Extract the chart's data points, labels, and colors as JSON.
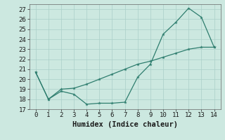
{
  "xlabel": "Humidex (Indice chaleur)",
  "x": [
    0,
    1,
    2,
    3,
    4,
    5,
    6,
    7,
    8,
    9,
    10,
    11,
    12,
    13,
    14
  ],
  "line1": [
    20.7,
    18.0,
    18.8,
    18.5,
    17.5,
    17.6,
    17.6,
    17.7,
    20.2,
    21.5,
    24.5,
    25.7,
    27.1,
    26.2,
    23.2
  ],
  "line2": [
    20.7,
    18.0,
    19.0,
    19.1,
    19.5,
    20.0,
    20.5,
    21.0,
    21.5,
    21.8,
    22.2,
    22.6,
    23.0,
    23.2,
    23.2
  ],
  "ylim": [
    17,
    27.5
  ],
  "xlim": [
    -0.5,
    14.5
  ],
  "yticks": [
    17,
    18,
    19,
    20,
    21,
    22,
    23,
    24,
    25,
    26,
    27
  ],
  "xticks": [
    0,
    1,
    2,
    3,
    4,
    5,
    6,
    7,
    8,
    9,
    10,
    11,
    12,
    13,
    14
  ],
  "line_color": "#2e7d6e",
  "bg_color": "#cce8e0",
  "grid_color": "#aacfc8",
  "tick_fontsize": 6.5,
  "xlabel_fontsize": 7.5
}
